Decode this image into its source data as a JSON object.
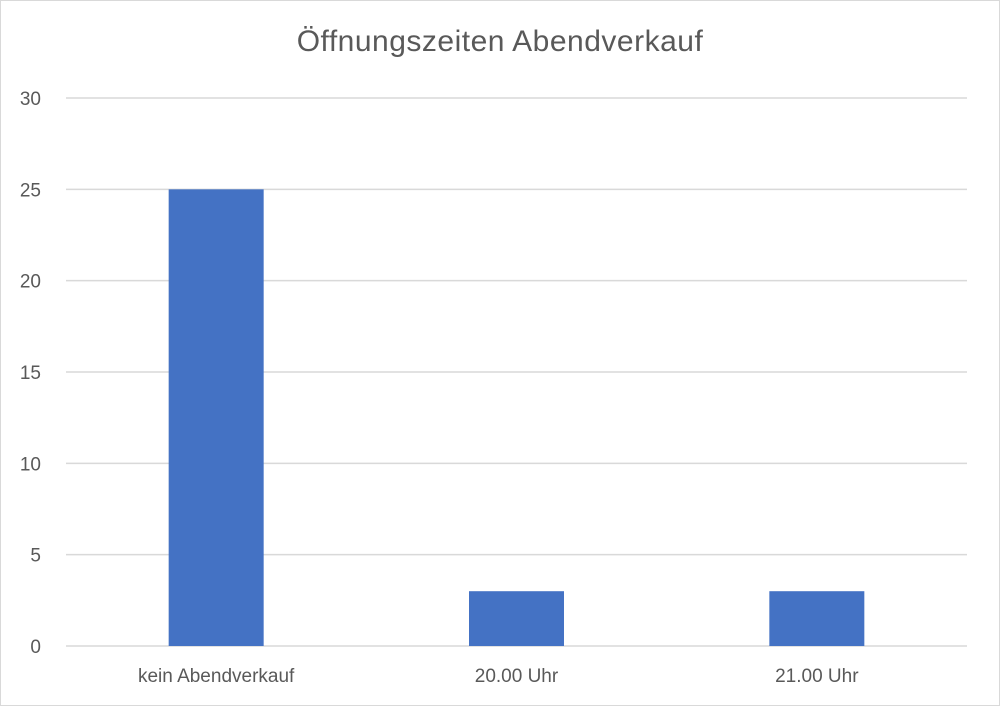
{
  "chart_data": {
    "type": "bar",
    "title": "Öffnungszeiten Abendverkauf",
    "categories": [
      "kein Abendverkauf",
      "20.00 Uhr",
      "21.00 Uhr"
    ],
    "values": [
      25,
      3,
      3
    ],
    "ylim": [
      0,
      30
    ],
    "yticks": [
      0,
      5,
      10,
      15,
      20,
      25,
      30
    ],
    "xlabel": "",
    "ylabel": "",
    "grid": true,
    "legend": "none",
    "bar_color": "#4472c4",
    "gridline_color": "#d9d9d9"
  }
}
